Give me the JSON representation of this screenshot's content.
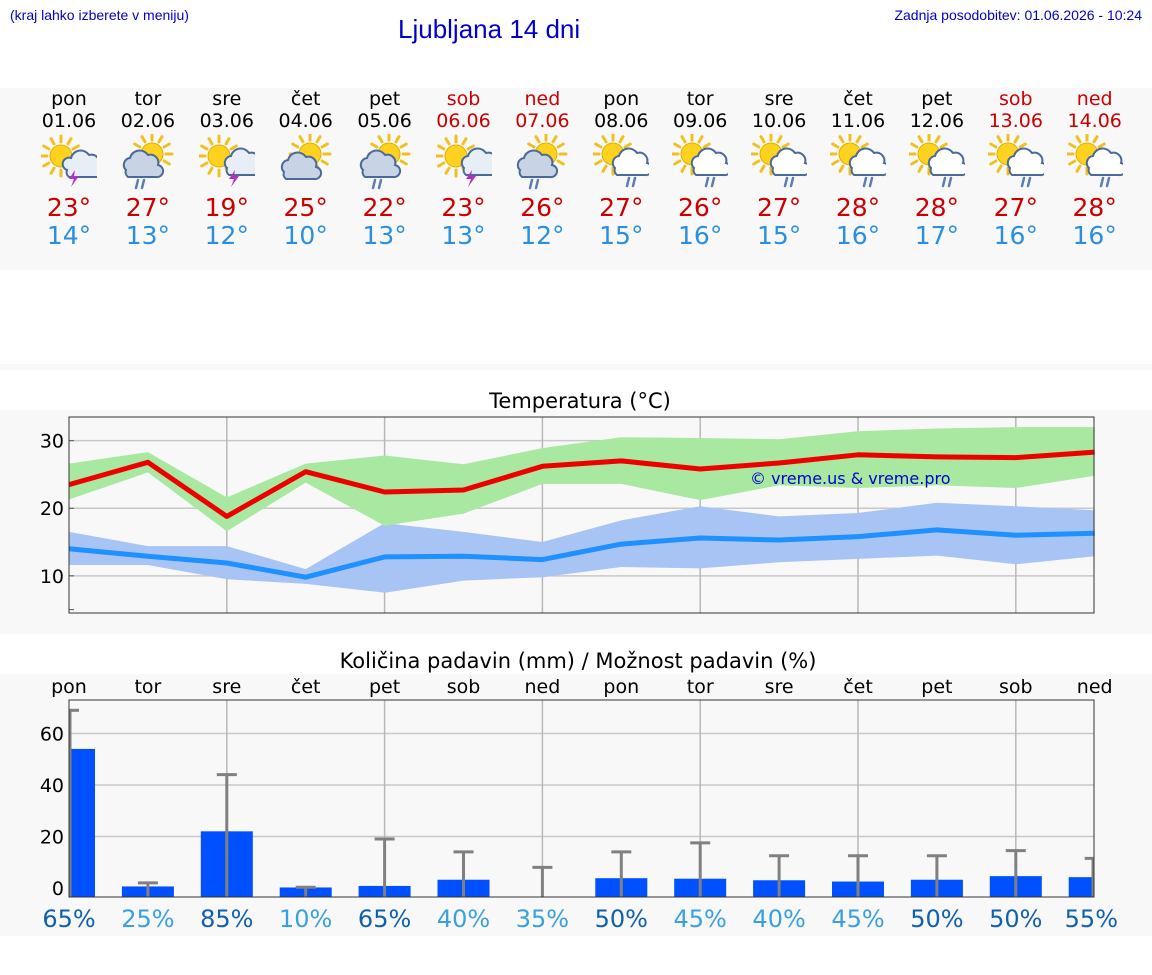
{
  "header": {
    "note": "(kraj lahko izberete v meniju)",
    "title": "Ljubljana 14 dni",
    "updated": "Zadnja posodobitev: 01.06.2026 - 10:24"
  },
  "days": [
    {
      "name": "pon",
      "date": "01.06",
      "weekend": false,
      "icon": "sun-cloud-thunder-icon",
      "tmax": "23°",
      "tmin": "14°"
    },
    {
      "name": "tor",
      "date": "02.06",
      "weekend": false,
      "icon": "sun-cloud-rain-icon",
      "tmax": "27°",
      "tmin": "13°"
    },
    {
      "name": "sre",
      "date": "03.06",
      "weekend": false,
      "icon": "sun-thunder-icon",
      "tmax": "19°",
      "tmin": "12°"
    },
    {
      "name": "čet",
      "date": "04.06",
      "weekend": false,
      "icon": "sun-cloud-icon",
      "tmax": "25°",
      "tmin": "10°"
    },
    {
      "name": "pet",
      "date": "05.06",
      "weekend": false,
      "icon": "sun-cloud-rain-icon",
      "tmax": "22°",
      "tmin": "13°"
    },
    {
      "name": "sob",
      "date": "06.06",
      "weekend": true,
      "icon": "sun-thunder-icon",
      "tmax": "23°",
      "tmin": "13°"
    },
    {
      "name": "ned",
      "date": "07.06",
      "weekend": true,
      "icon": "sun-cloud-rain-icon",
      "tmax": "26°",
      "tmin": "12°"
    },
    {
      "name": "pon",
      "date": "08.06",
      "weekend": false,
      "icon": "sun-white-cloud-rain-icon",
      "tmax": "27°",
      "tmin": "15°"
    },
    {
      "name": "tor",
      "date": "09.06",
      "weekend": false,
      "icon": "sun-white-cloud-rain-icon",
      "tmax": "26°",
      "tmin": "16°"
    },
    {
      "name": "sre",
      "date": "10.06",
      "weekend": false,
      "icon": "sun-white-cloud-rain-icon",
      "tmax": "27°",
      "tmin": "15°"
    },
    {
      "name": "čet",
      "date": "11.06",
      "weekend": false,
      "icon": "sun-white-cloud-rain-icon",
      "tmax": "28°",
      "tmin": "16°"
    },
    {
      "name": "pet",
      "date": "12.06",
      "weekend": false,
      "icon": "sun-white-cloud-rain-icon",
      "tmax": "28°",
      "tmin": "17°"
    },
    {
      "name": "sob",
      "date": "13.06",
      "weekend": true,
      "icon": "sun-white-cloud-rain-icon",
      "tmax": "27°",
      "tmin": "16°"
    },
    {
      "name": "ned",
      "date": "14.06",
      "weekend": true,
      "icon": "sun-white-cloud-rain-icon",
      "tmax": "28°",
      "tmin": "16°"
    }
  ],
  "colors": {
    "title_blue": "#0000cc",
    "weekend_red": "#cc0000",
    "tmax_line": "#ee0000",
    "tmin_line": "#1e90ff",
    "tmax_band": "#a8e8a0",
    "tmin_band": "#a8c4f4",
    "precip_bar": "#0050ff",
    "prob_dark": "#1060b0",
    "prob_light": "#3aa0e0"
  },
  "chart_data": [
    {
      "type": "line",
      "title": "Temperatura (°C)",
      "watermark": "© vreme.us & vreme.pro",
      "ylim": [
        4.5,
        33.5
      ],
      "yticks": [
        "10",
        "20",
        "30"
      ],
      "grid": true,
      "x": [
        "01.06",
        "02.06",
        "03.06",
        "04.06",
        "05.06",
        "06.06",
        "07.06",
        "08.06",
        "09.06",
        "10.06",
        "11.06",
        "12.06",
        "13.06",
        "14.06"
      ],
      "series": [
        {
          "key": "tmax",
          "values": [
            23.5,
            26.8,
            18.8,
            25.4,
            22.4,
            22.7,
            26.2,
            27.0,
            25.8,
            26.7,
            27.9,
            27.6,
            27.5,
            28.3
          ]
        },
        {
          "key": "tmin",
          "values": [
            14.0,
            12.9,
            11.9,
            9.8,
            12.8,
            12.9,
            12.4,
            14.7,
            15.6,
            15.3,
            15.8,
            16.8,
            16.0,
            16.3
          ]
        }
      ],
      "bands": [
        {
          "key": "tmax_range",
          "low": [
            21.3,
            25.3,
            16.6,
            23.8,
            17.4,
            19.2,
            23.6,
            23.6,
            21.2,
            23.4,
            23.0,
            23.4,
            23.0,
            24.8
          ],
          "high": [
            26.6,
            28.3,
            21.6,
            26.6,
            27.8,
            26.5,
            28.9,
            30.5,
            30.4,
            30.2,
            31.4,
            31.8,
            32.0,
            32.0
          ]
        },
        {
          "key": "tmin_range",
          "low": [
            11.6,
            11.6,
            9.5,
            8.8,
            7.5,
            9.3,
            9.8,
            11.3,
            11.1,
            12.0,
            12.5,
            13.0,
            11.7,
            12.9
          ],
          "high": [
            16.5,
            14.4,
            14.4,
            11.0,
            17.8,
            16.5,
            15.0,
            18.2,
            20.3,
            18.8,
            19.3,
            20.8,
            20.3,
            19.7
          ]
        }
      ]
    },
    {
      "type": "bar",
      "title": "Količina padavin (mm) / Možnost padavin (%)",
      "ylim": [
        -3.5,
        73
      ],
      "yticks": [
        "0",
        "20",
        "40",
        "60"
      ],
      "grid": true,
      "categories": [
        "pon",
        "tor",
        "sre",
        "čet",
        "pet",
        "sob",
        "ned",
        "pon",
        "tor",
        "sre",
        "čet",
        "pet",
        "sob",
        "ned"
      ],
      "values": [
        54,
        0.6,
        22,
        0.2,
        0.8,
        3.2,
        0,
        3.8,
        3.6,
        3.0,
        2.5,
        3.2,
        4.6,
        4.2
      ],
      "error_high": [
        69,
        2,
        44,
        0.3,
        19,
        14,
        8,
        14,
        17.5,
        12.5,
        12.5,
        12.5,
        14.5,
        11.5
      ],
      "probability": [
        "65%",
        "25%",
        "85%",
        "10%",
        "65%",
        "40%",
        "35%",
        "50%",
        "45%",
        "40%",
        "45%",
        "50%",
        "50%",
        "55%"
      ],
      "probability_values": [
        65,
        25,
        85,
        10,
        65,
        40,
        35,
        50,
        45,
        40,
        45,
        50,
        50,
        55
      ]
    }
  ]
}
